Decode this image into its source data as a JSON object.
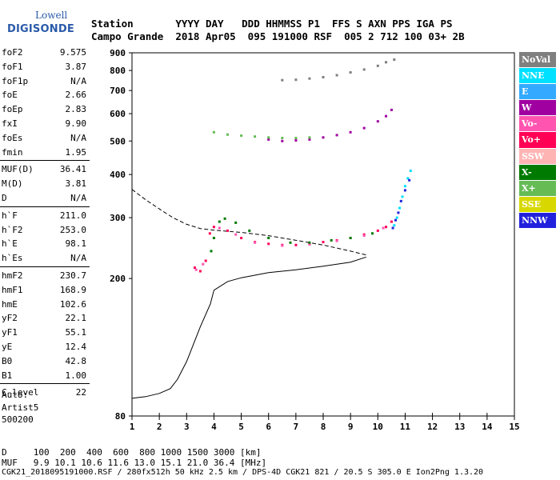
{
  "logo": {
    "line1": "Lowell",
    "line2": "DIGISONDE"
  },
  "header": {
    "row1": "Station       YYYY DAY   DDD HHMMSS P1  FFS S AXN PPS IGA PS",
    "row2": "Campo Grande  2018 Apr05  095 191000 RSF  005 2 712 100 03+ 2B"
  },
  "parameters": [
    {
      "k": "foF2",
      "v": "9.575"
    },
    {
      "k": "foF1",
      "v": "3.87"
    },
    {
      "k": "foF1p",
      "v": "N/A"
    },
    {
      "k": "foE",
      "v": "2.66"
    },
    {
      "k": "foEp",
      "v": "2.83"
    },
    {
      "k": "fxI",
      "v": "9.90"
    },
    {
      "k": "foEs",
      "v": "N/A"
    },
    {
      "k": "fmin",
      "v": "1.95"
    },
    {
      "k": "MUF(D)",
      "v": "36.41",
      "divider": true
    },
    {
      "k": "M(D)",
      "v": "3.81"
    },
    {
      "k": "D",
      "v": "N/A"
    },
    {
      "k": "h`F",
      "v": "211.0",
      "divider": true
    },
    {
      "k": "h`F2",
      "v": "253.0"
    },
    {
      "k": "h`E",
      "v": "98.1"
    },
    {
      "k": "h`Es",
      "v": "N/A"
    },
    {
      "k": "hmF2",
      "v": "230.7",
      "divider": true
    },
    {
      "k": "hmF1",
      "v": "168.9"
    },
    {
      "k": "hmE",
      "v": "102.6"
    },
    {
      "k": "yF2",
      "v": "22.1"
    },
    {
      "k": "yF1",
      "v": "55.1"
    },
    {
      "k": "yE",
      "v": "12.4"
    },
    {
      "k": "B0",
      "v": "42.8"
    },
    {
      "k": "B1",
      "v": "1.00"
    },
    {
      "k": "C-level",
      "v": "22",
      "divider": true
    }
  ],
  "auto": {
    "line1": "Auto:",
    "line2": "Artist5",
    "line3": "500200"
  },
  "legend": [
    {
      "label": "NoVal",
      "color": "#7f7f7f"
    },
    {
      "label": "NNE",
      "color": "#00e0ff"
    },
    {
      "label": "E",
      "color": "#33aaff"
    },
    {
      "label": "W",
      "color": "#a000a0"
    },
    {
      "label": "Vo-",
      "color": "#ff55b0"
    },
    {
      "label": "Vo+",
      "color": "#ff0055"
    },
    {
      "label": "SSW",
      "color": "#ffb4b4"
    },
    {
      "label": "X-",
      "color": "#007a00"
    },
    {
      "label": "X+",
      "color": "#66bb55"
    },
    {
      "label": "SSE",
      "color": "#d8d800"
    },
    {
      "label": "NNW",
      "color": "#2222dd"
    }
  ],
  "footer": {
    "line1": "D     100  200  400  600  800 1000 1500 3000 [km]",
    "line2": "MUF   9.9 10.1 10.6 11.6 13.0 15.1 21.0 36.4 [MHz]",
    "line3": "CGK21_2018095191000.RSF / 280fx512h 50 kHz 2.5 km / DPS-4D CGK21 821 / 20.5 S 305.0 E Ion2Png 1.3.20"
  },
  "chart_data": {
    "type": "scatter",
    "title": "",
    "xlabel": "",
    "ylabel": "",
    "xlim": [
      1,
      15
    ],
    "ylim": [
      80,
      900
    ],
    "y_scale": "log",
    "x_ticks": [
      1,
      2,
      3,
      4,
      5,
      6,
      7,
      8,
      9,
      10,
      11,
      12,
      13,
      14,
      15
    ],
    "y_ticks": [
      80,
      200,
      300,
      400,
      500,
      600,
      700,
      800,
      900
    ],
    "series": [
      {
        "name": "Vo+",
        "color": "#ff0055",
        "points": [
          [
            3.3,
            215
          ],
          [
            3.5,
            210
          ],
          [
            3.7,
            225
          ],
          [
            3.85,
            270
          ],
          [
            4.0,
            282
          ],
          [
            4.5,
            275
          ],
          [
            5.0,
            262
          ],
          [
            5.5,
            255
          ],
          [
            6.0,
            252
          ],
          [
            6.5,
            250
          ],
          [
            7.0,
            250
          ],
          [
            7.5,
            252
          ],
          [
            8.0,
            255
          ],
          [
            8.5,
            258
          ],
          [
            9.0,
            262
          ],
          [
            9.5,
            268
          ],
          [
            10.0,
            275
          ],
          [
            10.3,
            282
          ],
          [
            10.5,
            292
          ]
        ]
      },
      {
        "name": "Vo-",
        "color": "#ff55b0",
        "points": [
          [
            3.35,
            212
          ],
          [
            3.6,
            220
          ],
          [
            4.2,
            280
          ],
          [
            4.8,
            268
          ],
          [
            5.5,
            254
          ],
          [
            6.5,
            249
          ],
          [
            7.5,
            251
          ],
          [
            8.5,
            257
          ],
          [
            9.5,
            266
          ],
          [
            10.2,
            280
          ]
        ]
      },
      {
        "name": "X-",
        "color": "#007a00",
        "points": [
          [
            3.9,
            240
          ],
          [
            4.0,
            262
          ],
          [
            4.2,
            292
          ],
          [
            4.4,
            298
          ],
          [
            4.8,
            290
          ],
          [
            5.3,
            275
          ],
          [
            6.0,
            262
          ],
          [
            6.8,
            254
          ],
          [
            7.5,
            254
          ],
          [
            8.3,
            258
          ],
          [
            9.0,
            262
          ],
          [
            9.8,
            270
          ]
        ]
      },
      {
        "name": "W",
        "color": "#a000a0",
        "points": [
          [
            6.0,
            505
          ],
          [
            6.5,
            500
          ],
          [
            7.0,
            502
          ],
          [
            7.5,
            505
          ],
          [
            8.0,
            512
          ],
          [
            8.5,
            520
          ],
          [
            9.0,
            530
          ],
          [
            9.5,
            545
          ],
          [
            10.0,
            570
          ],
          [
            10.3,
            590
          ],
          [
            10.5,
            615
          ]
        ]
      },
      {
        "name": "X+",
        "color": "#66bb55",
        "points": [
          [
            4.0,
            530
          ],
          [
            4.5,
            522
          ],
          [
            5.0,
            518
          ],
          [
            5.5,
            515
          ],
          [
            6.0,
            512
          ],
          [
            6.5,
            510
          ],
          [
            7.0,
            510
          ],
          [
            7.5,
            512
          ]
        ]
      },
      {
        "name": "NoVal",
        "color": "#7f7f7f",
        "points": [
          [
            6.5,
            750
          ],
          [
            7.0,
            752
          ],
          [
            7.5,
            758
          ],
          [
            8.0,
            765
          ],
          [
            8.5,
            775
          ],
          [
            9.0,
            790
          ],
          [
            9.5,
            805
          ],
          [
            10.0,
            825
          ],
          [
            10.3,
            845
          ],
          [
            10.6,
            860
          ]
        ]
      },
      {
        "name": "NNE",
        "color": "#00e0ff",
        "points": [
          [
            10.6,
            285
          ],
          [
            10.7,
            300
          ],
          [
            10.8,
            320
          ],
          [
            10.9,
            345
          ],
          [
            11.0,
            370
          ],
          [
            11.1,
            390
          ],
          [
            11.2,
            410
          ]
        ]
      },
      {
        "name": "NNW",
        "color": "#2222dd",
        "points": [
          [
            10.55,
            280
          ],
          [
            10.65,
            295
          ],
          [
            10.75,
            310
          ],
          [
            10.85,
            335
          ],
          [
            11.0,
            360
          ],
          [
            11.15,
            385
          ]
        ]
      }
    ],
    "lines": [
      {
        "name": "profile",
        "style": "solid",
        "points": [
          [
            1.0,
            90
          ],
          [
            1.5,
            91
          ],
          [
            2.0,
            93
          ],
          [
            2.4,
            96
          ],
          [
            2.66,
            102
          ],
          [
            3.0,
            115
          ],
          [
            3.5,
            145
          ],
          [
            3.87,
            168.9
          ],
          [
            4.0,
            185
          ],
          [
            4.5,
            196
          ],
          [
            5.0,
            201
          ],
          [
            6.0,
            208
          ],
          [
            7.0,
            212
          ],
          [
            8.0,
            217
          ],
          [
            9.0,
            223
          ],
          [
            9.575,
            230.7
          ]
        ]
      },
      {
        "name": "model",
        "style": "dashed",
        "points": [
          [
            1.0,
            362
          ],
          [
            1.5,
            338
          ],
          [
            2.0,
            318
          ],
          [
            2.5,
            300
          ],
          [
            3.0,
            287
          ],
          [
            3.5,
            279
          ],
          [
            4.0,
            276
          ],
          [
            5.0,
            272
          ],
          [
            6.0,
            266
          ],
          [
            7.0,
            258
          ],
          [
            8.0,
            250
          ],
          [
            9.0,
            240
          ],
          [
            9.575,
            234
          ]
        ]
      }
    ]
  }
}
